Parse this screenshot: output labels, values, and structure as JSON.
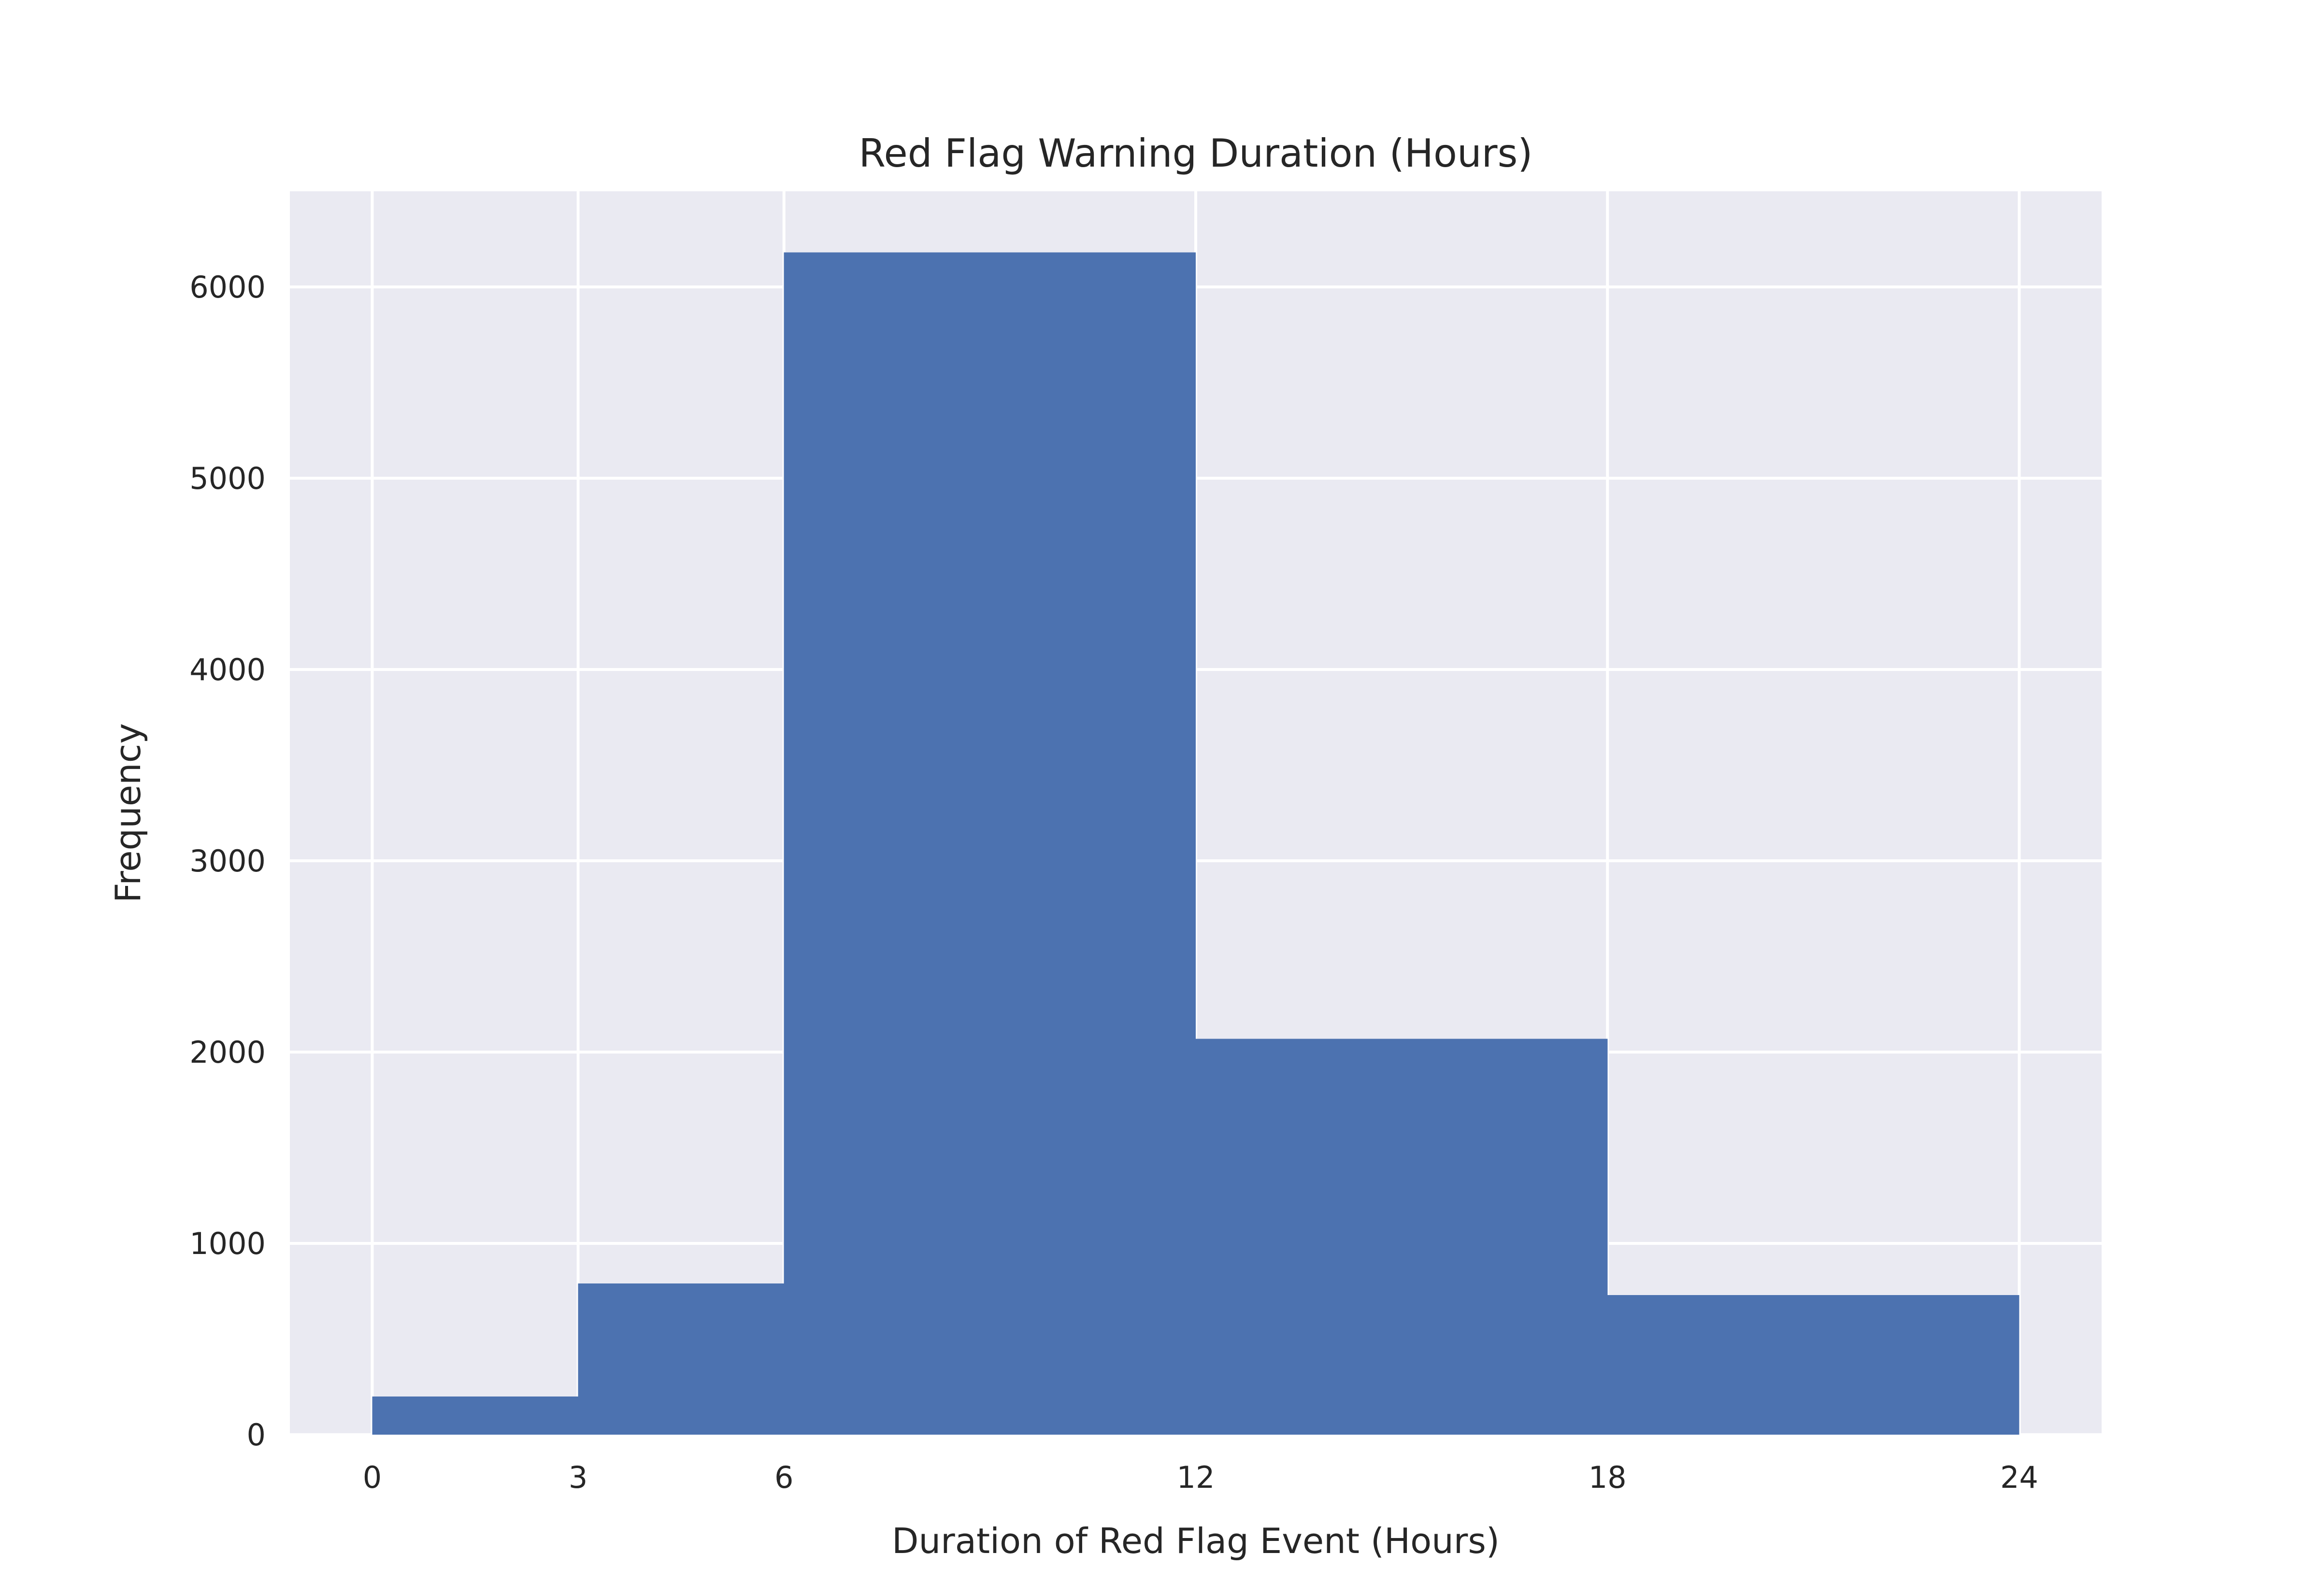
{
  "chart_data": {
    "type": "bar",
    "subtype": "histogram",
    "title": "Red Flag Warning Duration (Hours)",
    "xlabel": "Duration of Red Flag Event (Hours)",
    "ylabel": "Frequency",
    "bins": [
      {
        "start": 0,
        "end": 3,
        "value": 200
      },
      {
        "start": 3,
        "end": 6,
        "value": 790
      },
      {
        "start": 6,
        "end": 12,
        "value": 6180
      },
      {
        "start": 12,
        "end": 18,
        "value": 2070
      },
      {
        "start": 18,
        "end": 24,
        "value": 730
      }
    ],
    "xticks": [
      0,
      3,
      6,
      12,
      18,
      24
    ],
    "yticks": [
      0,
      1000,
      2000,
      3000,
      4000,
      5000,
      6000
    ],
    "xlim": [
      -1.2,
      25.2
    ],
    "ylim": [
      0,
      6500
    ],
    "grid": true,
    "colors": {
      "bar": "#4c72b0",
      "plot_background": "#eaeaf2",
      "grid": "#ffffff",
      "text": "#262626"
    }
  }
}
